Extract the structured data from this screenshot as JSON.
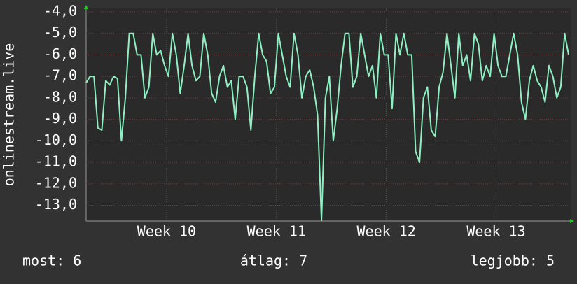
{
  "chart_data": {
    "type": "line",
    "y_label": "onlinestream.live",
    "x": [
      0,
      0.25,
      0.5,
      0.75,
      1,
      1.25,
      1.5,
      1.75,
      2,
      2.25,
      2.5,
      2.75,
      3,
      3.25,
      3.5,
      3.75,
      4,
      4.25,
      4.5,
      4.75,
      5,
      5.25,
      5.5,
      5.75,
      6,
      6.25,
      6.5,
      6.75,
      7,
      7.25,
      7.5,
      7.75,
      8,
      8.25,
      8.5,
      8.75,
      9,
      9.25,
      9.5,
      9.75,
      10,
      10.25,
      10.5,
      10.75,
      11,
      11.25,
      11.5,
      11.75,
      12,
      12.25,
      12.5,
      12.75,
      13,
      13.25,
      13.5,
      13.75,
      14,
      14.25,
      14.5,
      14.75,
      15,
      15.25,
      15.5,
      15.75,
      16,
      16.25,
      16.5,
      16.75,
      17,
      17.25,
      17.5,
      17.75,
      18,
      18.25,
      18.5,
      18.75,
      19,
      19.25,
      19.5,
      19.75,
      20,
      20.25,
      20.5,
      20.75,
      21,
      21.25,
      21.5,
      21.75,
      22,
      22.25,
      22.5,
      22.75,
      23,
      23.25,
      23.5,
      23.75,
      24,
      24.25,
      24.5,
      24.75,
      25,
      25.25,
      25.5,
      25.75,
      26,
      26.25,
      26.5,
      26.75,
      27,
      27.25,
      27.5,
      27.75,
      28,
      28.25,
      28.5,
      28.75,
      29,
      29.25,
      29.5,
      29.75,
      30,
      30.25,
      30.5,
      30.75
    ],
    "series": [
      {
        "color": "#8ef0c2",
        "values": [
          -7.3,
          -7.0,
          -7.0,
          -9.4,
          -9.5,
          -7.2,
          -7.4,
          -7.0,
          -7.1,
          -10.0,
          -8.0,
          -5.0,
          -5.0,
          -6.0,
          -6.0,
          -8.0,
          -7.5,
          -5.0,
          -6.0,
          -5.8,
          -6.5,
          -7.0,
          -5.0,
          -6.0,
          -7.8,
          -6.5,
          -5.0,
          -6.5,
          -7.2,
          -7.0,
          -5.0,
          -6.0,
          -7.8,
          -8.2,
          -7.0,
          -6.5,
          -7.5,
          -7.2,
          -9.0,
          -7.0,
          -7.0,
          -7.5,
          -9.5,
          -7.0,
          -5.0,
          -6.0,
          -6.3,
          -7.8,
          -7.5,
          -5.0,
          -6.0,
          -7.0,
          -7.5,
          -5.0,
          -6.0,
          -8.0,
          -7.0,
          -6.7,
          -7.5,
          -8.8,
          -13.7,
          -8.0,
          -7.0,
          -10.0,
          -8.5,
          -6.5,
          -5.0,
          -5.0,
          -7.5,
          -7.0,
          -5.0,
          -6.0,
          -7.0,
          -6.5,
          -8.0,
          -5.0,
          -6.0,
          -6.0,
          -8.5,
          -5.0,
          -6.0,
          -5.0,
          -6.0,
          -6.0,
          -10.5,
          -11.0,
          -8.0,
          -7.5,
          -9.5,
          -9.8,
          -7.5,
          -6.8,
          -5.0,
          -6.5,
          -8.0,
          -5.0,
          -6.5,
          -6.0,
          -7.2,
          -5.0,
          -5.5,
          -7.2,
          -6.5,
          -7.0,
          -5.0,
          -6.5,
          -7.0,
          -7.0,
          -6.0,
          -5.0,
          -6.0,
          -8.2,
          -9.0,
          -7.2,
          -6.5,
          -7.2,
          -7.5,
          -8.2,
          -6.5,
          -7.0,
          -8.0,
          -7.5,
          -5.0,
          -6.0
        ]
      }
    ],
    "xlim": [
      0,
      30.75
    ],
    "xticks": [
      {
        "value": 5.13,
        "label": "Week 10"
      },
      {
        "value": 12.13,
        "label": "Week 11"
      },
      {
        "value": 19.13,
        "label": "Week 12"
      },
      {
        "value": 26.13,
        "label": "Week 13"
      }
    ],
    "ylim": [
      -13.7,
      -4.0
    ],
    "yticks": [
      {
        "value": -4,
        "label": "-4,0"
      },
      {
        "value": -5,
        "label": "-5,0"
      },
      {
        "value": -6,
        "label": "-6,0"
      },
      {
        "value": -7,
        "label": "-7,0"
      },
      {
        "value": -8,
        "label": "-8,0"
      },
      {
        "value": -9,
        "label": "-9,0"
      },
      {
        "value": -10,
        "label": "-10,0"
      },
      {
        "value": -11,
        "label": "-11,0"
      },
      {
        "value": -12,
        "label": "-12,0"
      },
      {
        "value": -13,
        "label": "-13,0"
      }
    ],
    "grid": true,
    "stats": [
      "most: 6",
      "átlag: 7",
      "legjobb: 5"
    ]
  }
}
